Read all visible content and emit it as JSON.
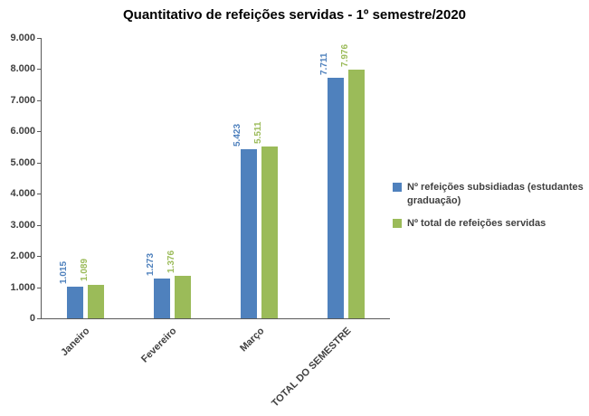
{
  "page": {
    "background": "#FFFFFF"
  },
  "chart_data": {
    "type": "bar",
    "title": "Quantitativo de refeições servidas - 1º semestre/2020",
    "categories": [
      "Janeiro",
      "Fevereiro",
      "Março",
      "TOTAL DO SEMESTRE"
    ],
    "series": [
      {
        "name": "Nº refeições subsidiadas (estudantes graduação)",
        "color": "#4F81BD",
        "values": [
          1015,
          1273,
          5423,
          7711
        ],
        "data_labels": [
          "1.015",
          "1.273",
          "5.423",
          "7.711"
        ]
      },
      {
        "name": "Nº total de refeições servidas",
        "color": "#9BBB59",
        "values": [
          1089,
          1376,
          5511,
          7976
        ],
        "data_labels": [
          "1.089",
          "1.376",
          "5.511",
          "7.976"
        ]
      }
    ],
    "xlabel": "",
    "ylabel": "",
    "ylim": [
      0,
      9000
    ],
    "ytick_step": 1000,
    "ytick_labels": [
      "0",
      "1.000",
      "2.000",
      "3.000",
      "4.000",
      "5.000",
      "6.000",
      "7.000",
      "8.000",
      "9.000"
    ],
    "grid": false,
    "legend_position": "right",
    "x_label_rotation_deg": -45,
    "data_label_rotation_deg": -90
  }
}
